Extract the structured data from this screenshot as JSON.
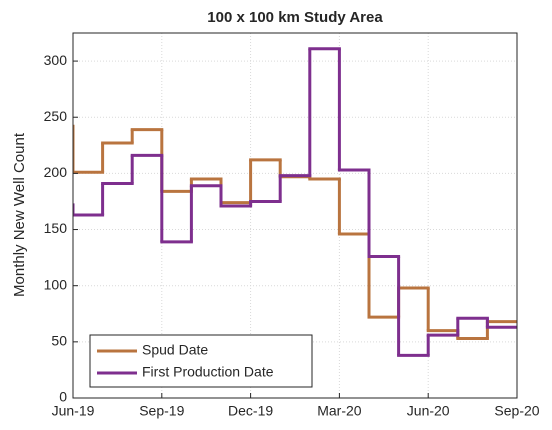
{
  "chart_data": {
    "type": "stairs",
    "title": "100 x 100 km Study Area",
    "ylabel": "Monthly New Well Count",
    "x": [
      -1,
      0,
      1,
      2,
      3,
      4,
      5,
      6,
      7,
      8,
      9,
      10,
      11,
      12,
      13,
      14
    ],
    "xlim": [
      0,
      15
    ],
    "xticks": [
      {
        "value": 0,
        "label": "Jun-19"
      },
      {
        "value": 3,
        "label": "Sep-19"
      },
      {
        "value": 6,
        "label": "Dec-19"
      },
      {
        "value": 9,
        "label": "Mar-20"
      },
      {
        "value": 12,
        "label": "Jun-20"
      },
      {
        "value": 15,
        "label": "Sep-20"
      }
    ],
    "ylim": [
      0,
      325
    ],
    "yticks": [
      0,
      50,
      100,
      150,
      200,
      250,
      300
    ],
    "grid": true,
    "legend": "lower-left",
    "series": [
      {
        "name": "Spud Date",
        "color": "#b9743f",
        "values": [
          242,
          201,
          227,
          239,
          184,
          195,
          174,
          212,
          197,
          195,
          146,
          72,
          98,
          60,
          53,
          68
        ]
      },
      {
        "name": "First Production Date",
        "color": "#7e2f8e",
        "values": [
          172,
          163,
          191,
          216,
          139,
          189,
          171,
          175,
          198,
          311,
          203,
          126,
          38,
          56,
          71,
          63
        ]
      }
    ]
  }
}
